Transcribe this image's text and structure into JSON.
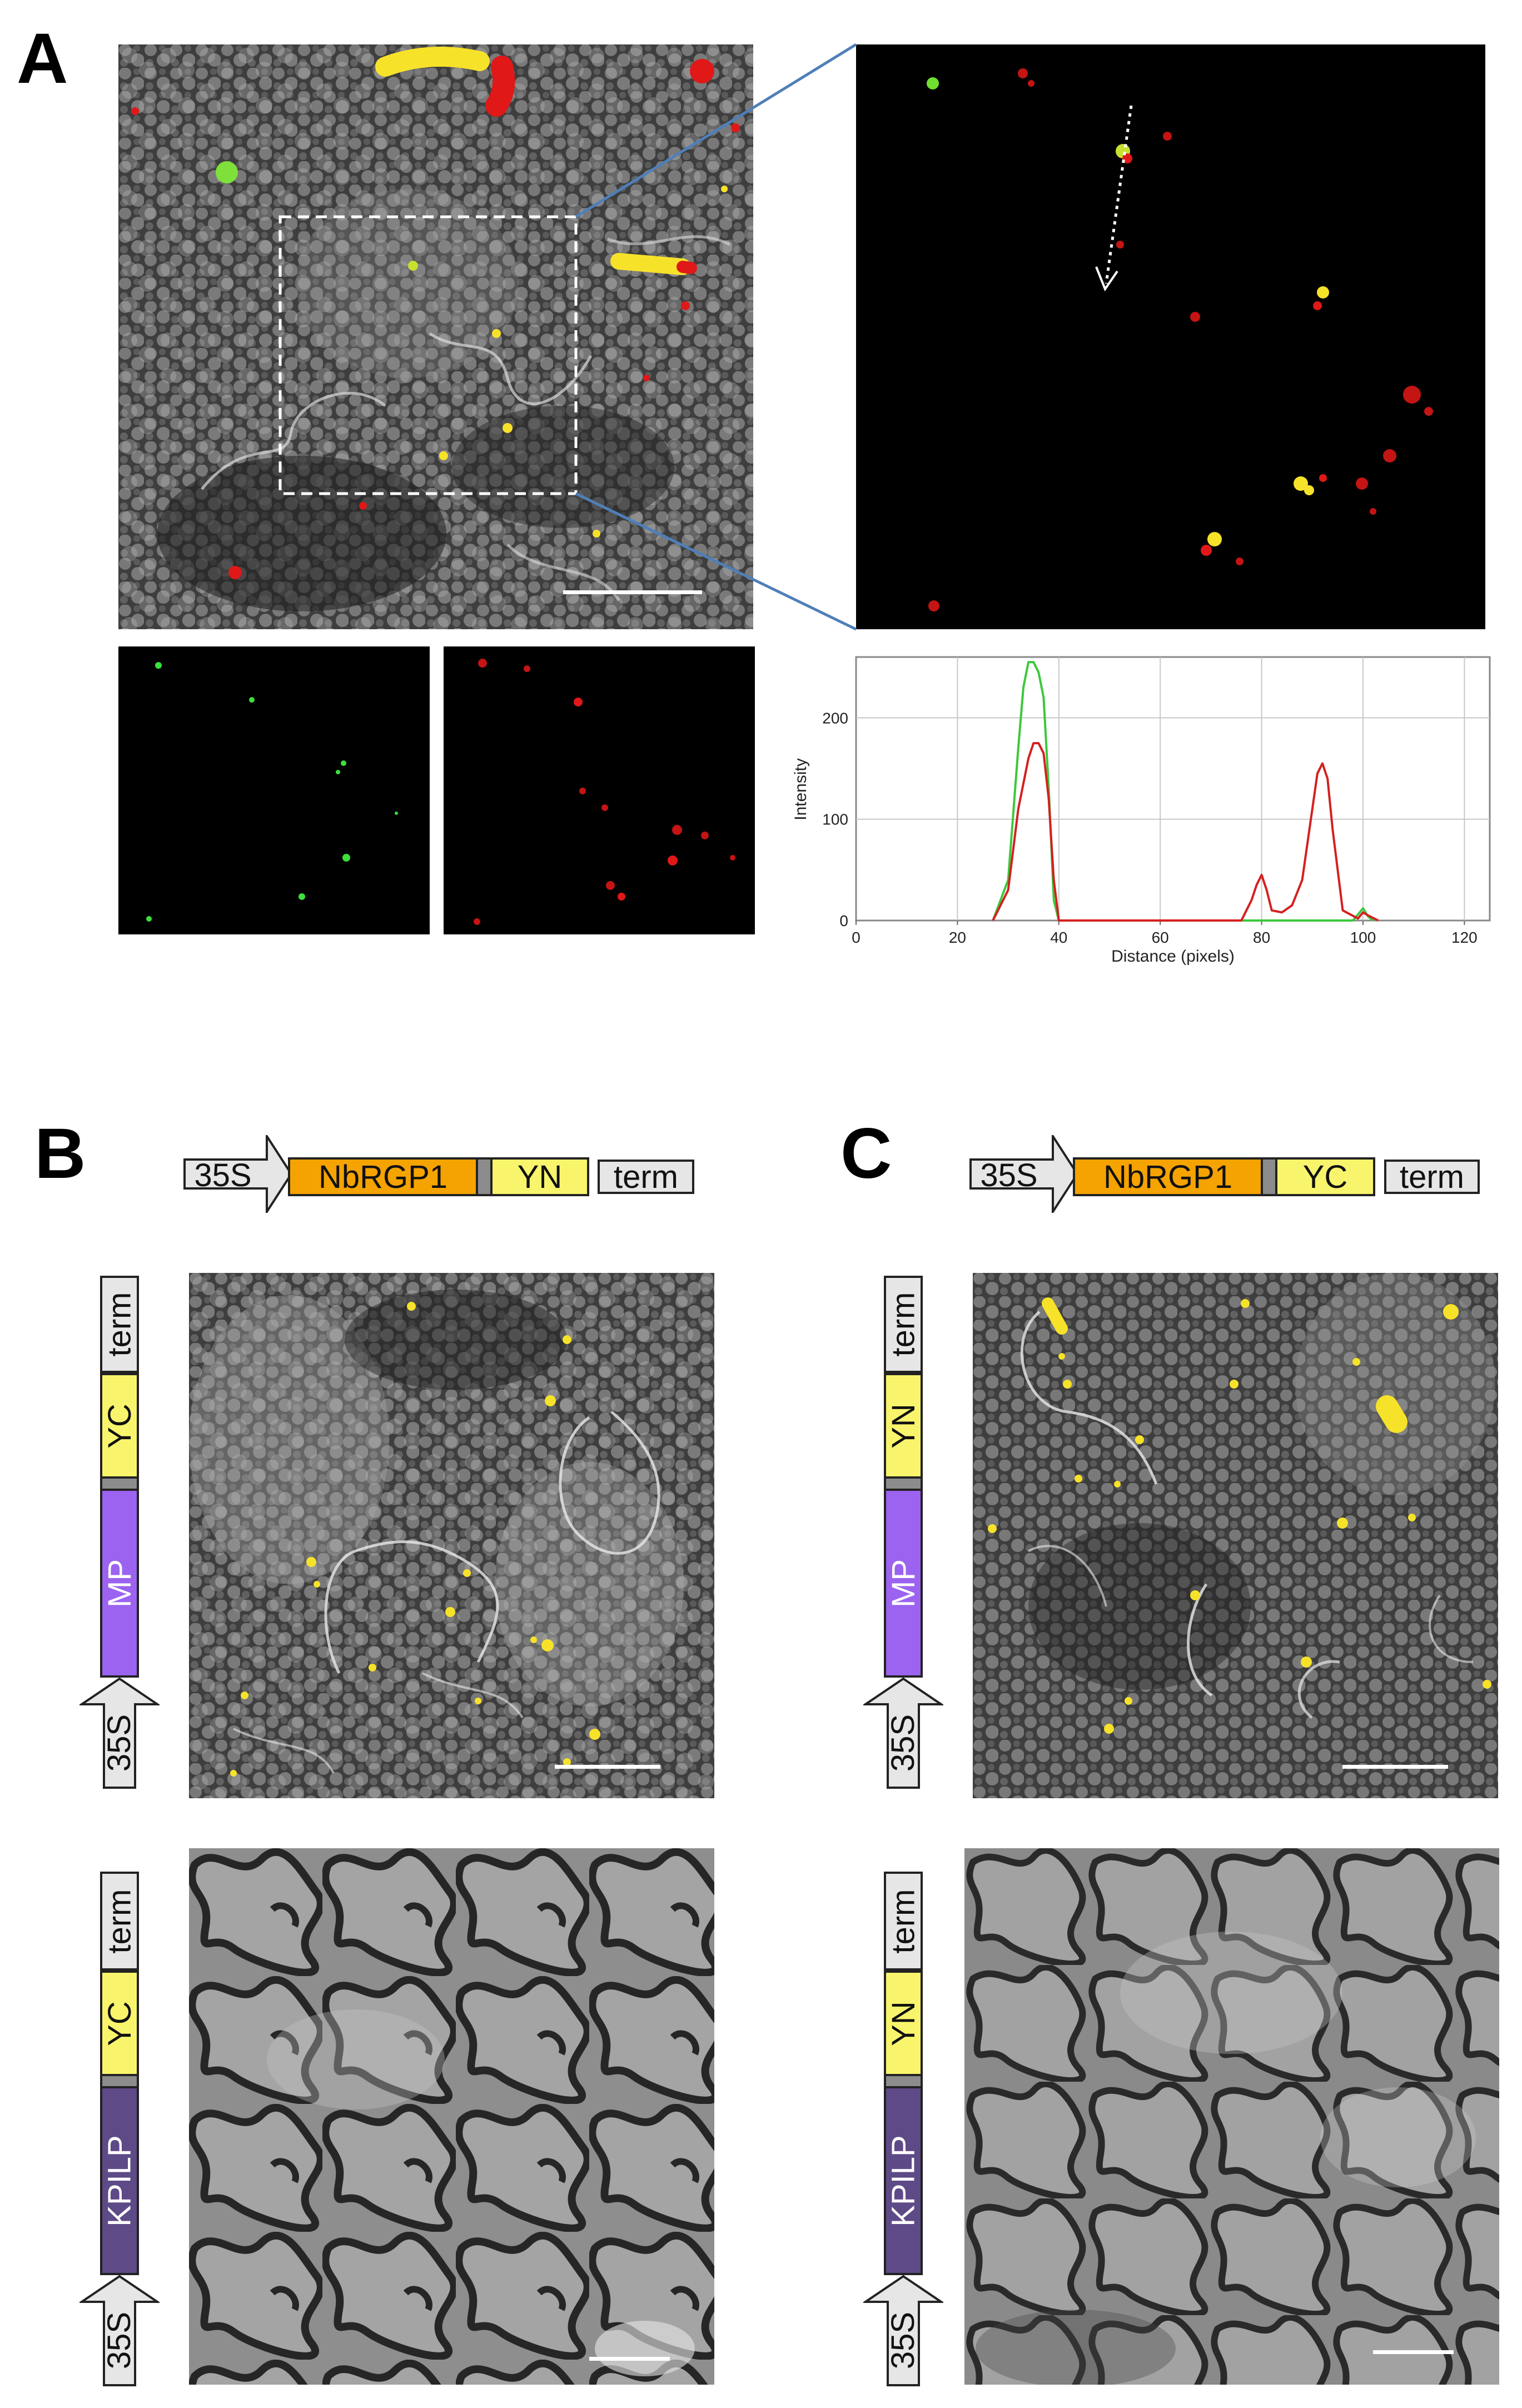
{
  "panels": {
    "a": {
      "letter": "A"
    },
    "b": {
      "letter": "B"
    },
    "c": {
      "letter": "C"
    }
  },
  "constructs": {
    "b_top": [
      "35S",
      "NbRGP1",
      "YN",
      "term"
    ],
    "c_top": [
      "35S",
      "NbRGP1",
      "YC",
      "term"
    ],
    "b_mid": [
      "35S",
      "MP",
      "YC",
      "term"
    ],
    "c_mid": [
      "35S",
      "MP",
      "YN",
      "term"
    ],
    "b_bottom": [
      "35S",
      "KPILP",
      "YC",
      "term"
    ],
    "c_bottom": [
      "35S",
      "KPILP",
      "YN",
      "term"
    ]
  },
  "colors": {
    "promoter": "#e6e6e6",
    "nbrgp1": "#f5a300",
    "yfp_fragment": "#f8f56c",
    "mp": "#9b63f0",
    "kpilp": "#5e4a86",
    "linker": "#8c8c8c",
    "gfp_trace": "#3cc83c",
    "rfp_trace": "#d42020",
    "zoom_lines": "#4f7fb8"
  },
  "chart_data": {
    "type": "line",
    "xlabel": "Distance (pixels)",
    "ylabel": "Intensity",
    "xlim": [
      0,
      125
    ],
    "ylim": [
      0,
      260
    ],
    "xticks": [
      "0",
      "20",
      "40",
      "60",
      "80",
      "100",
      "120"
    ],
    "yticks": [
      "0",
      "100",
      "200"
    ],
    "grid": true,
    "series": [
      {
        "color": "#3cc83c",
        "x": [
          27,
          30,
          32,
          33,
          34,
          35,
          36,
          37,
          38,
          39,
          40,
          98,
          99,
          100,
          101,
          102
        ],
        "y": [
          0,
          40,
          170,
          230,
          255,
          255,
          245,
          220,
          130,
          20,
          0,
          0,
          6,
          12,
          4,
          0
        ]
      },
      {
        "color": "#d42020",
        "x": [
          27,
          30,
          32,
          34,
          35,
          36,
          37,
          38,
          39,
          40,
          76,
          78,
          79,
          80,
          81,
          82,
          84,
          86,
          88,
          90,
          91,
          92,
          93,
          94,
          96,
          99,
          100,
          101,
          103
        ],
        "y": [
          0,
          30,
          110,
          160,
          175,
          175,
          165,
          120,
          40,
          0,
          0,
          20,
          35,
          45,
          30,
          10,
          8,
          15,
          40,
          110,
          145,
          155,
          140,
          90,
          10,
          2,
          8,
          5,
          0
        ]
      }
    ]
  }
}
